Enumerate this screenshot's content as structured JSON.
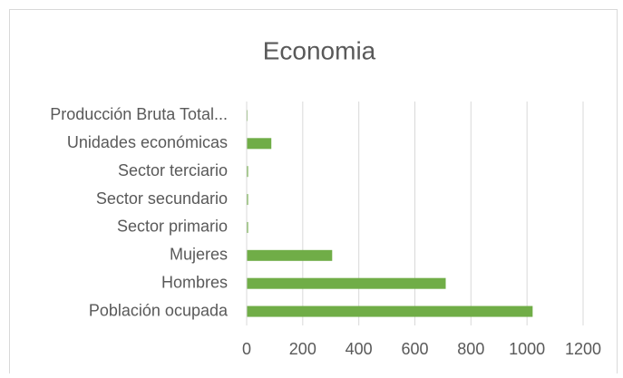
{
  "chart_data": {
    "type": "bar",
    "orientation": "horizontal",
    "title": "Economia",
    "categories": [
      "Producción Bruta Total...",
      "Unidades económicas",
      "Sector terciario",
      "Sector secundario",
      "Sector primario",
      "Mujeres",
      "Hombres",
      "Población ocupada"
    ],
    "values": [
      3,
      88,
      5,
      5,
      5,
      305,
      710,
      1020
    ],
    "color": "#70ad47",
    "xlim": [
      0,
      1200
    ],
    "xticks": [
      0,
      200,
      400,
      600,
      800,
      1000,
      1200
    ],
    "grid": true
  }
}
